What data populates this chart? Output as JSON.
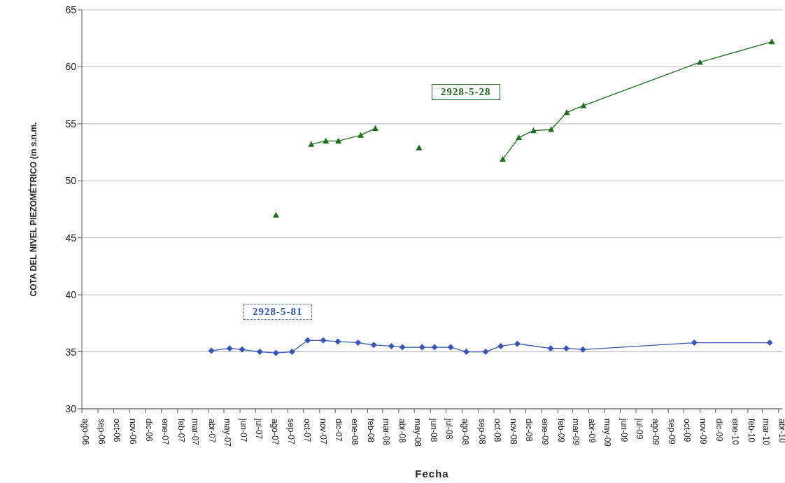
{
  "chart_data": {
    "type": "line",
    "xlabel": "Fecha",
    "ylabel": "COTA DEL NIVEL PIEZOMÉTRICO (m s.n.m.",
    "xlim": [
      "2006-08-01",
      "2010-04-08"
    ],
    "ylim": [
      30,
      65
    ],
    "yticks": [
      30,
      35,
      40,
      45,
      50,
      55,
      60,
      65
    ],
    "xticks": [
      {
        "value": "2006-08",
        "label": "ago-06"
      },
      {
        "value": "2006-09",
        "label": "sep-06"
      },
      {
        "value": "2006-10",
        "label": "oct-06"
      },
      {
        "value": "2006-11",
        "label": "nov-06"
      },
      {
        "value": "2006-12",
        "label": "dic-06"
      },
      {
        "value": "2007-01",
        "label": "ene-07"
      },
      {
        "value": "2007-02",
        "label": "feb-07"
      },
      {
        "value": "2007-03",
        "label": "mar-07"
      },
      {
        "value": "2007-04",
        "label": "abr-07"
      },
      {
        "value": "2007-05",
        "label": "may-07"
      },
      {
        "value": "2007-06",
        "label": "jun-07"
      },
      {
        "value": "2007-07",
        "label": "jul-07"
      },
      {
        "value": "2007-08",
        "label": "ago-07"
      },
      {
        "value": "2007-09",
        "label": "sep-07"
      },
      {
        "value": "2007-10",
        "label": "oct-07"
      },
      {
        "value": "2007-11",
        "label": "nov-07"
      },
      {
        "value": "2007-12",
        "label": "dic-07"
      },
      {
        "value": "2008-01",
        "label": "ene-08"
      },
      {
        "value": "2008-02",
        "label": "feb-08"
      },
      {
        "value": "2008-03",
        "label": "mar-08"
      },
      {
        "value": "2008-04",
        "label": "abr-08"
      },
      {
        "value": "2008-05",
        "label": "may-08"
      },
      {
        "value": "2008-06",
        "label": "jun-08"
      },
      {
        "value": "2008-07",
        "label": "jul-08"
      },
      {
        "value": "2008-08",
        "label": "ago-08"
      },
      {
        "value": "2008-09",
        "label": "sep-08"
      },
      {
        "value": "2008-10",
        "label": "oct-08"
      },
      {
        "value": "2008-11",
        "label": "nov-08"
      },
      {
        "value": "2008-12",
        "label": "dic-08"
      },
      {
        "value": "2009-01",
        "label": "ene-09"
      },
      {
        "value": "2009-02",
        "label": "feb-09"
      },
      {
        "value": "2009-03",
        "label": "mar-09"
      },
      {
        "value": "2009-04",
        "label": "abr-09"
      },
      {
        "value": "2009-05",
        "label": "may-09"
      },
      {
        "value": "2009-06",
        "label": "jun-09"
      },
      {
        "value": "2009-07",
        "label": "jul-09"
      },
      {
        "value": "2009-08",
        "label": "ago-09"
      },
      {
        "value": "2009-09",
        "label": "sep-09"
      },
      {
        "value": "2009-10",
        "label": "oct-09"
      },
      {
        "value": "2009-11",
        "label": "nov-09"
      },
      {
        "value": "2009-12",
        "label": "dic-09"
      },
      {
        "value": "2010-01",
        "label": "ene-10"
      },
      {
        "value": "2010-02",
        "label": "feb-10"
      },
      {
        "value": "2010-03",
        "label": "mar-10"
      },
      {
        "value": "2010-04",
        "label": "abr-10"
      }
    ],
    "grid": "y",
    "legend": false,
    "line_style": "solid",
    "series": [
      {
        "name": "2928-5-28",
        "color": "#1f6e1f",
        "marker": "triangle",
        "x": [
          "2007-08-09",
          "2007-09-15",
          "2007-10-16",
          "2007-11-13",
          "2007-12-07",
          "2008-01-19",
          "2008-02-16",
          "2008-04-01",
          "2008-05-10",
          "2008-07-01",
          "2008-10-18",
          "2008-11-18",
          "2008-12-16",
          "2009-01-19",
          "2009-02-18",
          "2009-03-22",
          "2009-11-01",
          "2010-03-19"
        ],
        "values": [
          47.0,
          null,
          53.2,
          53.5,
          53.5,
          54.0,
          54.6,
          null,
          52.9,
          null,
          51.9,
          53.8,
          54.4,
          54.5,
          56.0,
          56.6,
          60.4,
          62.2
        ]
      },
      {
        "name": "2928-5-81",
        "color": "#3556b8",
        "marker": "diamond",
        "x": [
          "2007-04-07",
          "2007-05-12",
          "2007-06-05",
          "2007-07-09",
          "2007-08-09",
          "2007-09-09",
          "2007-10-09",
          "2007-11-08",
          "2007-12-06",
          "2008-01-14",
          "2008-02-13",
          "2008-03-18",
          "2008-04-08",
          "2008-05-16",
          "2008-06-09",
          "2008-07-10",
          "2008-08-09",
          "2008-09-15",
          "2008-10-14",
          "2008-11-15",
          "2009-01-18",
          "2009-02-17",
          "2009-03-21",
          "2009-10-21",
          "2010-03-15"
        ],
        "values": [
          35.1,
          35.3,
          35.2,
          35.0,
          34.9,
          35.0,
          36.0,
          36.0,
          35.9,
          35.8,
          35.6,
          35.5,
          35.4,
          35.4,
          35.4,
          35.4,
          35.0,
          35.0,
          35.5,
          35.7,
          35.3,
          35.3,
          35.2,
          35.8,
          35.8
        ]
      }
    ]
  }
}
